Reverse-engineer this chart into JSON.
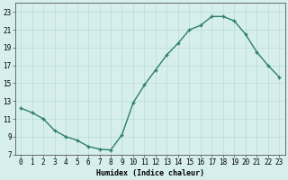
{
  "x": [
    0,
    1,
    2,
    3,
    4,
    5,
    6,
    7,
    8,
    9,
    10,
    11,
    12,
    13,
    14,
    15,
    16,
    17,
    18,
    19,
    20,
    21,
    22,
    23
  ],
  "y": [
    12.2,
    11.7,
    11.0,
    9.7,
    9.0,
    8.6,
    7.9,
    7.6,
    7.5,
    9.2,
    12.8,
    14.8,
    16.5,
    18.2,
    19.5,
    21.0,
    21.5,
    22.5,
    22.5,
    22.0,
    20.5,
    18.5,
    17.0,
    15.7
  ],
  "line_color": "#2e7d6d",
  "marker": "+",
  "bg_color": "#d6efed",
  "grid_color": "#b8dbd8",
  "axis_color": "#555555",
  "xlabel": "Humidex (Indice chaleur)",
  "xlim": [
    -0.5,
    23.5
  ],
  "ylim": [
    7,
    24
  ],
  "yticks": [
    7,
    9,
    11,
    13,
    15,
    17,
    19,
    21,
    23
  ],
  "xticks": [
    0,
    1,
    2,
    3,
    4,
    5,
    6,
    7,
    8,
    9,
    10,
    11,
    12,
    13,
    14,
    15,
    16,
    17,
    18,
    19,
    20,
    21,
    22,
    23
  ],
  "xlabel_fontsize": 6.0,
  "tick_fontsize": 5.5,
  "linewidth": 1.0,
  "markersize": 3.5,
  "markeredgewidth": 1.0
}
